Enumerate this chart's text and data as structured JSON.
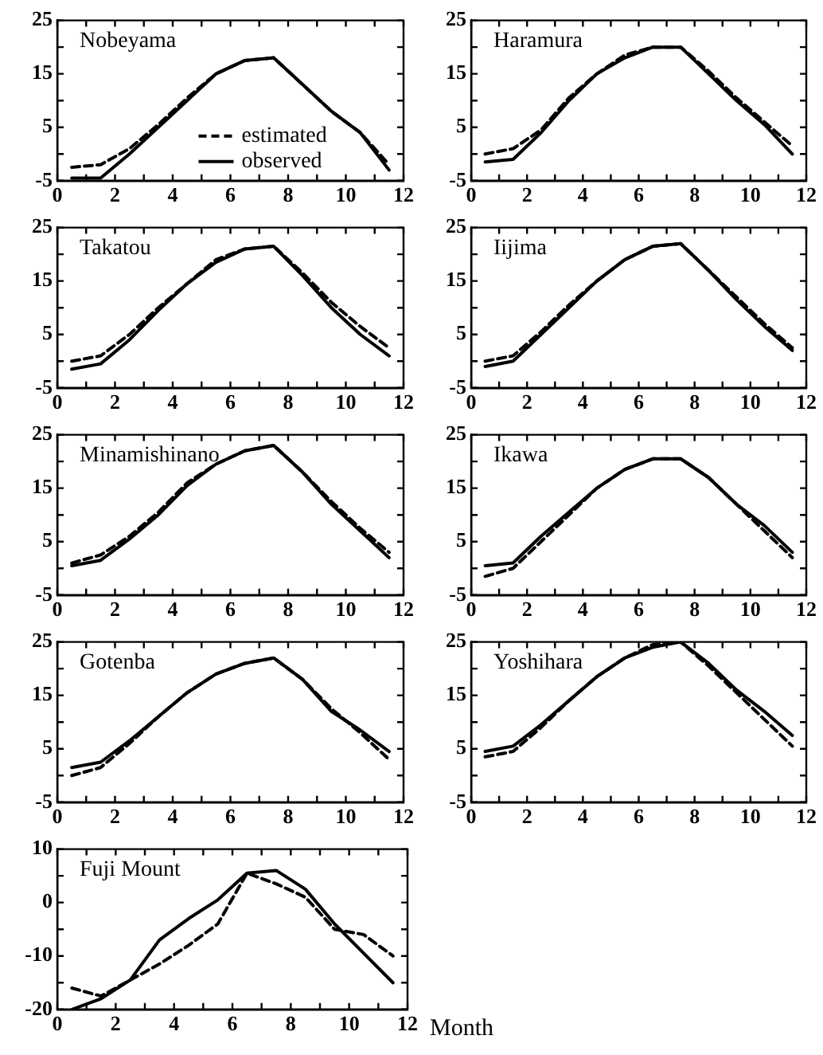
{
  "chart_data": [
    {
      "type": "line",
      "annotations": [
        "Nobeyama"
      ],
      "legend": "bottom",
      "grid": false,
      "x": [
        0.5,
        1.5,
        2.5,
        3.5,
        4.5,
        5.5,
        6.5,
        7.5,
        8.5,
        9.5,
        10.5,
        11.5
      ],
      "xlim": [
        0,
        12
      ],
      "xticks": [
        0,
        {
          "value": 1,
          "label": null
        },
        2,
        {
          "value": 3,
          "label": null
        },
        4,
        {
          "value": 5,
          "label": null
        },
        6,
        {
          "value": 7,
          "label": null
        },
        8,
        {
          "value": 9,
          "label": null
        },
        10,
        {
          "value": 11,
          "label": null
        },
        12
      ],
      "ylim": [
        -5,
        25
      ],
      "yticks": [
        -5,
        {
          "value": 0,
          "label": null
        },
        5,
        {
          "value": 10,
          "label": null
        },
        15,
        {
          "value": 20,
          "label": null
        },
        25
      ],
      "series": [
        {
          "name": "estimated",
          "color": "#000000",
          "line_style": "dashed",
          "values": [
            -2.5,
            -2,
            1,
            5.5,
            10.5,
            15,
            17.5,
            18,
            13,
            8,
            4,
            -2
          ]
        },
        {
          "name": "observed",
          "color": "#000000",
          "line_style": "solid",
          "values": [
            -4.5,
            -4.5,
            0,
            5,
            10,
            15,
            17.5,
            18,
            13,
            8,
            4,
            -3
          ]
        }
      ]
    },
    {
      "type": "line",
      "annotations": [
        "Haramura"
      ],
      "grid": false,
      "x": [
        0.5,
        1.5,
        2.5,
        3.5,
        4.5,
        5.5,
        6.5,
        7.5,
        8.5,
        9.5,
        10.5,
        11.5
      ],
      "xlim": [
        0,
        12
      ],
      "xticks": [
        0,
        {
          "value": 1,
          "label": null
        },
        2,
        {
          "value": 3,
          "label": null
        },
        4,
        {
          "value": 5,
          "label": null
        },
        6,
        {
          "value": 7,
          "label": null
        },
        8,
        {
          "value": 9,
          "label": null
        },
        10,
        {
          "value": 11,
          "label": null
        },
        12
      ],
      "ylim": [
        -5,
        25
      ],
      "yticks": [
        -5,
        {
          "value": 0,
          "label": null
        },
        5,
        {
          "value": 10,
          "label": null
        },
        15,
        {
          "value": 20,
          "label": null
        },
        25
      ],
      "series": [
        {
          "color": "#000000",
          "line_style": "dashed",
          "values": [
            0,
            1,
            4.5,
            10.5,
            15,
            18.5,
            20,
            20,
            15.5,
            10.5,
            6,
            1.5
          ]
        },
        {
          "color": "#000000",
          "line_style": "solid",
          "values": [
            -1.5,
            -1,
            4,
            10,
            15,
            18,
            20,
            20,
            15,
            10,
            5.5,
            0
          ]
        }
      ]
    },
    {
      "type": "line",
      "annotations": [
        "Takatou"
      ],
      "grid": false,
      "x": [
        0.5,
        1.5,
        2.5,
        3.5,
        4.5,
        5.5,
        6.5,
        7.5,
        8.5,
        9.5,
        10.5,
        11.5
      ],
      "xlim": [
        0,
        12
      ],
      "xticks": [
        0,
        {
          "value": 1,
          "label": null
        },
        2,
        {
          "value": 3,
          "label": null
        },
        4,
        {
          "value": 5,
          "label": null
        },
        6,
        {
          "value": 7,
          "label": null
        },
        8,
        {
          "value": 9,
          "label": null
        },
        10,
        {
          "value": 11,
          "label": null
        },
        12
      ],
      "ylim": [
        -5,
        25
      ],
      "yticks": [
        -5,
        {
          "value": 0,
          "label": null
        },
        5,
        {
          "value": 10,
          "label": null
        },
        15,
        {
          "value": 20,
          "label": null
        },
        25
      ],
      "series": [
        {
          "color": "#000000",
          "line_style": "dashed",
          "values": [
            0,
            1,
            5,
            10,
            14.5,
            19,
            21,
            21.5,
            16.5,
            11,
            6.5,
            2.5
          ]
        },
        {
          "color": "#000000",
          "line_style": "solid",
          "values": [
            -1.5,
            -0.5,
            4,
            9.5,
            14.5,
            18.5,
            21,
            21.5,
            16,
            10,
            5,
            1
          ]
        }
      ]
    },
    {
      "type": "line",
      "annotations": [
        "Iijima"
      ],
      "grid": false,
      "x": [
        0.5,
        1.5,
        2.5,
        3.5,
        4.5,
        5.5,
        6.5,
        7.5,
        8.5,
        9.5,
        10.5,
        11.5
      ],
      "xlim": [
        0,
        12
      ],
      "xticks": [
        0,
        {
          "value": 1,
          "label": null
        },
        2,
        {
          "value": 3,
          "label": null
        },
        4,
        {
          "value": 5,
          "label": null
        },
        6,
        {
          "value": 7,
          "label": null
        },
        8,
        {
          "value": 9,
          "label": null
        },
        10,
        {
          "value": 11,
          "label": null
        },
        12
      ],
      "ylim": [
        -5,
        25
      ],
      "yticks": [
        -5,
        {
          "value": 0,
          "label": null
        },
        5,
        {
          "value": 10,
          "label": null
        },
        15,
        {
          "value": 20,
          "label": null
        },
        25
      ],
      "series": [
        {
          "color": "#000000",
          "line_style": "dashed",
          "values": [
            0,
            1,
            5.5,
            10.5,
            15,
            19,
            21.5,
            22,
            17,
            12,
            7,
            2.5
          ]
        },
        {
          "color": "#000000",
          "line_style": "solid",
          "values": [
            -1,
            0,
            5,
            10,
            15,
            19,
            21.5,
            22,
            17,
            11.5,
            6.5,
            2
          ]
        }
      ]
    },
    {
      "type": "line",
      "annotations": [
        "Minamishinano"
      ],
      "grid": false,
      "x": [
        0.5,
        1.5,
        2.5,
        3.5,
        4.5,
        5.5,
        6.5,
        7.5,
        8.5,
        9.5,
        10.5,
        11.5
      ],
      "xlim": [
        0,
        12
      ],
      "xticks": [
        0,
        {
          "value": 1,
          "label": null
        },
        2,
        {
          "value": 3,
          "label": null
        },
        4,
        {
          "value": 5,
          "label": null
        },
        6,
        {
          "value": 7,
          "label": null
        },
        8,
        {
          "value": 9,
          "label": null
        },
        10,
        {
          "value": 11,
          "label": null
        },
        12
      ],
      "ylim": [
        -5,
        25
      ],
      "yticks": [
        -5,
        {
          "value": 0,
          "label": null
        },
        5,
        {
          "value": 10,
          "label": null
        },
        15,
        {
          "value": 20,
          "label": null
        },
        25
      ],
      "series": [
        {
          "color": "#000000",
          "line_style": "dashed",
          "values": [
            1,
            2.5,
            6,
            10.5,
            16,
            19.5,
            22,
            23,
            18,
            12.5,
            7.5,
            3
          ]
        },
        {
          "color": "#000000",
          "line_style": "solid",
          "values": [
            0.5,
            1.5,
            5.5,
            10,
            15.5,
            19.5,
            22,
            23,
            18,
            12,
            7,
            2
          ]
        }
      ]
    },
    {
      "type": "line",
      "annotations": [
        "Ikawa"
      ],
      "grid": false,
      "x": [
        0.5,
        1.5,
        2.5,
        3.5,
        4.5,
        5.5,
        6.5,
        7.5,
        8.5,
        9.5,
        10.5,
        11.5
      ],
      "xlim": [
        0,
        12
      ],
      "xticks": [
        0,
        {
          "value": 1,
          "label": null
        },
        2,
        {
          "value": 3,
          "label": null
        },
        4,
        {
          "value": 5,
          "label": null
        },
        6,
        {
          "value": 7,
          "label": null
        },
        8,
        {
          "value": 9,
          "label": null
        },
        10,
        {
          "value": 11,
          "label": null
        },
        12
      ],
      "ylim": [
        -5,
        25
      ],
      "yticks": [
        -5,
        {
          "value": 0,
          "label": null
        },
        5,
        {
          "value": 10,
          "label": null
        },
        15,
        {
          "value": 20,
          "label": null
        },
        25
      ],
      "series": [
        {
          "color": "#000000",
          "line_style": "dashed",
          "values": [
            -1.5,
            0,
            5,
            10,
            15,
            18.5,
            20.5,
            20.5,
            17,
            12,
            7,
            2
          ]
        },
        {
          "color": "#000000",
          "line_style": "solid",
          "values": [
            0.5,
            1,
            6,
            10.5,
            15,
            18.5,
            20.5,
            20.5,
            17,
            12,
            8,
            3
          ]
        }
      ]
    },
    {
      "type": "line",
      "annotations": [
        "Gotenba"
      ],
      "grid": false,
      "x": [
        0.5,
        1.5,
        2.5,
        3.5,
        4.5,
        5.5,
        6.5,
        7.5,
        8.5,
        9.5,
        10.5,
        11.5
      ],
      "xlim": [
        0,
        12
      ],
      "xticks": [
        0,
        {
          "value": 1,
          "label": null
        },
        2,
        {
          "value": 3,
          "label": null
        },
        4,
        {
          "value": 5,
          "label": null
        },
        6,
        {
          "value": 7,
          "label": null
        },
        8,
        {
          "value": 9,
          "label": null
        },
        10,
        {
          "value": 11,
          "label": null
        },
        12
      ],
      "ylim": [
        -5,
        25
      ],
      "yticks": [
        -5,
        {
          "value": 0,
          "label": null
        },
        5,
        {
          "value": 10,
          "label": null
        },
        15,
        {
          "value": 20,
          "label": null
        },
        25
      ],
      "series": [
        {
          "color": "#000000",
          "line_style": "dashed",
          "values": [
            0,
            1.5,
            6,
            11,
            15.5,
            19,
            21,
            22,
            18,
            12.5,
            8,
            3
          ]
        },
        {
          "color": "#000000",
          "line_style": "solid",
          "values": [
            1.5,
            2.5,
            6.5,
            11,
            15.5,
            19,
            21,
            22,
            18,
            12,
            8.5,
            4.5
          ]
        }
      ]
    },
    {
      "type": "line",
      "annotations": [
        "Yoshihara"
      ],
      "grid": false,
      "x": [
        0.5,
        1.5,
        2.5,
        3.5,
        4.5,
        5.5,
        6.5,
        7.5,
        8.5,
        9.5,
        10.5,
        11.5
      ],
      "xlim": [
        0,
        12
      ],
      "xticks": [
        0,
        {
          "value": 1,
          "label": null
        },
        2,
        {
          "value": 3,
          "label": null
        },
        4,
        {
          "value": 5,
          "label": null
        },
        6,
        {
          "value": 7,
          "label": null
        },
        8,
        {
          "value": 9,
          "label": null
        },
        10,
        {
          "value": 11,
          "label": null
        },
        12
      ],
      "ylim": [
        -5,
        25
      ],
      "yticks": [
        -5,
        {
          "value": 0,
          "label": null
        },
        5,
        {
          "value": 10,
          "label": null
        },
        15,
        {
          "value": 20,
          "label": null
        },
        25
      ],
      "series": [
        {
          "color": "#000000",
          "line_style": "dashed",
          "values": [
            3.5,
            4.5,
            9,
            14,
            18.5,
            22,
            24.5,
            25,
            20.5,
            15.5,
            10.5,
            5.5
          ]
        },
        {
          "color": "#000000",
          "line_style": "solid",
          "values": [
            4.5,
            5.5,
            9.5,
            14,
            18.5,
            22,
            24,
            25,
            21,
            16,
            12,
            7.5
          ]
        }
      ]
    },
    {
      "type": "line",
      "annotations": [
        "Fuji Mount"
      ],
      "xlabel": "Month",
      "grid": false,
      "x": [
        0.5,
        1.5,
        2.5,
        3.5,
        4.5,
        5.5,
        6.5,
        7.5,
        8.5,
        9.5,
        10.5,
        11.5
      ],
      "xlim": [
        0,
        12
      ],
      "xticks": [
        0,
        {
          "value": 1,
          "label": null
        },
        2,
        {
          "value": 3,
          "label": null
        },
        4,
        {
          "value": 5,
          "label": null
        },
        6,
        {
          "value": 7,
          "label": null
        },
        8,
        {
          "value": 9,
          "label": null
        },
        10,
        {
          "value": 11,
          "label": null
        },
        12
      ],
      "ylim": [
        -20,
        10
      ],
      "yticks": [
        -20,
        {
          "value": -15,
          "label": null
        },
        -10,
        {
          "value": -5,
          "label": null
        },
        0,
        {
          "value": 5,
          "label": null
        },
        10
      ],
      "series": [
        {
          "color": "#000000",
          "line_style": "dashed",
          "values": [
            -16,
            -17.5,
            -14.5,
            -11.5,
            -8,
            -4,
            5.5,
            3.5,
            1,
            -5,
            -6,
            -10
          ]
        },
        {
          "color": "#000000",
          "line_style": "solid",
          "values": [
            -20,
            -18,
            -14.5,
            -7,
            -3,
            0.5,
            5.5,
            6,
            2.5,
            -4,
            -9.5,
            -15
          ]
        }
      ]
    }
  ]
}
